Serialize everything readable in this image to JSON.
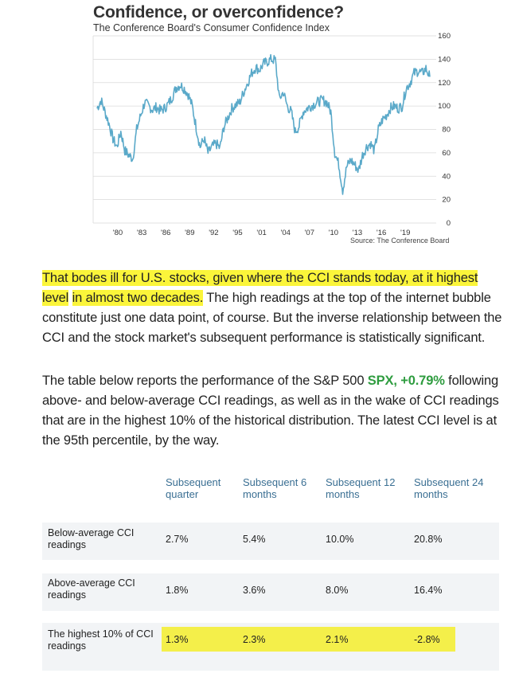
{
  "chart_title": "Confidence, or overconfidence?",
  "chart_subtitle": "The Conference Board's Consumer Confidence Index",
  "source": "Source: The Conference Board",
  "chart_data": {
    "type": "line",
    "series_color": "#5aa9c9",
    "y_ticks": [
      0,
      20,
      40,
      60,
      80,
      100,
      120,
      140,
      160
    ],
    "x_ticks": [
      "'80",
      "'83",
      "'86",
      "'89",
      "'92",
      "'95",
      "'01",
      "'04",
      "'07",
      "'10",
      "'13",
      "'16",
      "'19"
    ],
    "ylim": [
      0,
      160
    ],
    "xlim": [
      1977.5,
      2020.8
    ],
    "x": [
      1978,
      1978.5,
      1979,
      1979.5,
      1980,
      1980.5,
      1981,
      1981.5,
      1982,
      1982.5,
      1983,
      1983.5,
      1984,
      1984.5,
      1985,
      1985.5,
      1986,
      1986.5,
      1987,
      1987.5,
      1988,
      1988.5,
      1989,
      1989.5,
      1990,
      1990.5,
      1991,
      1991.5,
      1992,
      1992.5,
      1993,
      1993.5,
      1994,
      1994.5,
      1995,
      1995.5,
      1996,
      1996.5,
      1997,
      1997.5,
      1998,
      1998.5,
      1999,
      1999.5,
      2000,
      2000.5,
      2001,
      2001.5,
      2002,
      2002.5,
      2003,
      2003.5,
      2004,
      2004.5,
      2005,
      2005.5,
      2006,
      2006.5,
      2007,
      2007.5,
      2008,
      2008.5,
      2009,
      2009.5,
      2010,
      2010.5,
      2011,
      2011.5,
      2012,
      2012.5,
      2013,
      2013.5,
      2014,
      2014.5,
      2015,
      2015.5,
      2016,
      2016.5,
      2017,
      2017.5,
      2018,
      2018.5,
      2019,
      2019.5,
      2020
    ],
    "y": [
      98,
      105,
      95,
      85,
      72,
      65,
      78,
      62,
      58,
      55,
      80,
      92,
      103,
      100,
      97,
      99,
      96,
      98,
      102,
      108,
      116,
      118,
      115,
      110,
      100,
      82,
      65,
      72,
      60,
      65,
      68,
      64,
      82,
      90,
      98,
      101,
      103,
      112,
      120,
      128,
      133,
      131,
      136,
      138,
      140,
      139,
      106,
      112,
      100,
      95,
      78,
      83,
      95,
      98,
      100,
      102,
      104,
      105,
      103,
      95,
      60,
      50,
      28,
      48,
      54,
      50,
      45,
      58,
      65,
      68,
      62,
      80,
      88,
      92,
      98,
      100,
      98,
      100,
      115,
      120,
      128,
      130,
      128,
      132,
      125
    ]
  },
  "paragraphs": {
    "p1_hl1": "That bodes ill for U.S. stocks, given where the CCI stands today, at it highest level",
    "p1_hl2": "in almost two decades.",
    "p1_rest": " The high readings at the top of the internet bubble constitute just one data point, of course. But the inverse relationship between the CCI and the stock market's subsequent performance is statistically significant.",
    "p2_before": "The table below reports the performance of the S&P 500 ",
    "p2_ticker": "SPX, +0.79%",
    "p2_after": "  following above- and below-average CCI readings, as well as in the wake of CCI readings that are in the highest 10% of the historical distribution. The latest CCI level is at the 95th percentile, by the way."
  },
  "table": {
    "headers": [
      [
        "Subsequent",
        "quarter"
      ],
      [
        "Subsequent 6",
        "months"
      ],
      [
        "Subsequent 12",
        "months"
      ],
      [
        "Subsequent 24",
        "months"
      ]
    ],
    "rows": [
      {
        "label": [
          "Below-average CCI",
          "readings"
        ],
        "values": [
          "2.7%",
          "5.4%",
          "10.0%",
          "20.8%"
        ]
      },
      {
        "label": [
          "Above-average CCI",
          "readings"
        ],
        "values": [
          "1.8%",
          "3.6%",
          "8.0%",
          "16.4%"
        ]
      },
      {
        "label": [
          "The highest 10% of CCI",
          "readings"
        ],
        "values": [
          "1.3%",
          "2.3%",
          "2.1%",
          "-2.8%"
        ]
      }
    ]
  }
}
